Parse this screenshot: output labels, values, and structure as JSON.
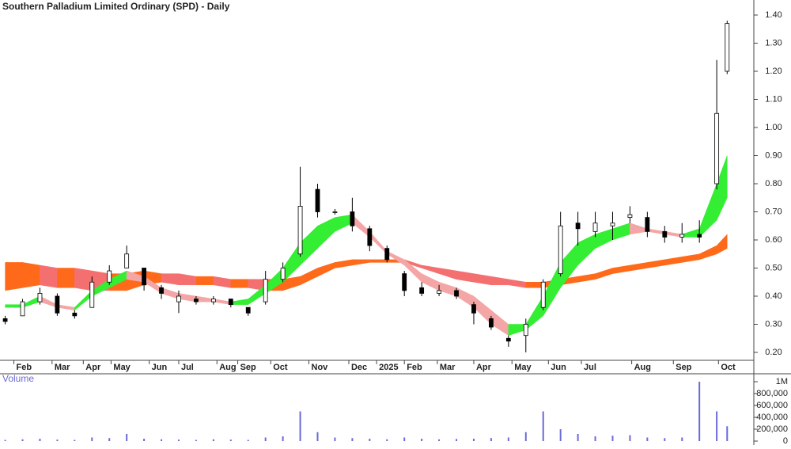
{
  "chart_data": {
    "type": "candlestick",
    "title": "Southern Palladium Limited Ordinary (SPD) - Daily",
    "xlim": [
      -3,
      430
    ],
    "xticks": [
      {
        "value": 5,
        "label": "Feb"
      },
      {
        "value": 27,
        "label": "Mar"
      },
      {
        "value": 45,
        "label": "Apr"
      },
      {
        "value": 61,
        "label": "May"
      },
      {
        "value": 83,
        "label": "Jun"
      },
      {
        "value": 100,
        "label": "Jul"
      },
      {
        "value": 122,
        "label": "Aug"
      },
      {
        "value": 134,
        "label": "Sep"
      },
      {
        "value": 153,
        "label": "Oct"
      },
      {
        "value": 175,
        "label": "Nov"
      },
      {
        "value": 198,
        "label": "Dec"
      },
      {
        "value": 214,
        "label": "2025"
      },
      {
        "value": 230,
        "label": "Feb"
      },
      {
        "value": 249,
        "label": "Mar"
      },
      {
        "value": 270,
        "label": "Apr"
      },
      {
        "value": 292,
        "label": "May"
      },
      {
        "value": 313,
        "label": "Jun"
      },
      {
        "value": 332,
        "label": "Jul"
      },
      {
        "value": 361,
        "label": "Aug"
      },
      {
        "value": 385,
        "label": "Sep"
      },
      {
        "value": 411,
        "label": "Oct"
      }
    ],
    "ylim": [
      0.15,
      1.46
    ],
    "yticks": [
      {
        "value": 0.2,
        "label": "0.20"
      },
      {
        "value": 0.3,
        "label": "0.30"
      },
      {
        "value": 0.4,
        "label": "0.40"
      },
      {
        "value": 0.5,
        "label": "0.50"
      },
      {
        "value": 0.6,
        "label": "0.60"
      },
      {
        "value": 0.7,
        "label": "0.70"
      },
      {
        "value": 0.8,
        "label": "0.80"
      },
      {
        "value": 0.9,
        "label": "0.90"
      },
      {
        "value": 1.0,
        "label": "1.00"
      },
      {
        "value": 1.1,
        "label": "1.10"
      },
      {
        "value": 1.2,
        "label": "1.20"
      },
      {
        "value": 1.3,
        "label": "1.30"
      },
      {
        "value": 1.4,
        "label": "1.40"
      }
    ],
    "x": [
      0,
      10,
      20,
      30,
      40,
      50,
      60,
      70,
      80,
      90,
      100,
      110,
      120,
      130,
      140,
      150,
      160,
      170,
      180,
      190,
      200,
      210,
      220,
      230,
      240,
      250,
      260,
      270,
      280,
      290,
      300,
      310,
      320,
      330,
      340,
      350,
      360,
      370,
      380,
      390,
      400,
      410,
      416
    ],
    "open": [
      0.32,
      0.33,
      0.38,
      0.4,
      0.34,
      0.36,
      0.45,
      0.5,
      0.5,
      0.43,
      0.38,
      0.39,
      0.38,
      0.39,
      0.36,
      0.38,
      0.46,
      0.55,
      0.78,
      0.7,
      0.7,
      0.64,
      0.57,
      0.48,
      0.43,
      0.41,
      0.42,
      0.37,
      0.32,
      0.25,
      0.26,
      0.36,
      0.48,
      0.66,
      0.63,
      0.65,
      0.68,
      0.68,
      0.63,
      0.61,
      0.62,
      0.8,
      1.2
    ],
    "high": [
      0.33,
      0.39,
      0.43,
      0.41,
      0.35,
      0.47,
      0.51,
      0.58,
      0.5,
      0.44,
      0.42,
      0.4,
      0.4,
      0.39,
      0.36,
      0.49,
      0.52,
      0.86,
      0.8,
      0.71,
      0.75,
      0.65,
      0.58,
      0.49,
      0.45,
      0.44,
      0.43,
      0.38,
      0.33,
      0.26,
      0.32,
      0.46,
      0.7,
      0.7,
      0.7,
      0.7,
      0.72,
      0.7,
      0.65,
      0.66,
      0.67,
      1.24,
      1.38
    ],
    "low": [
      0.3,
      0.33,
      0.37,
      0.33,
      0.32,
      0.36,
      0.44,
      0.5,
      0.42,
      0.39,
      0.34,
      0.37,
      0.37,
      0.36,
      0.33,
      0.37,
      0.45,
      0.54,
      0.68,
      0.69,
      0.63,
      0.56,
      0.52,
      0.4,
      0.4,
      0.4,
      0.39,
      0.3,
      0.28,
      0.22,
      0.2,
      0.35,
      0.47,
      0.58,
      0.61,
      0.6,
      0.66,
      0.61,
      0.59,
      0.59,
      0.59,
      0.78,
      1.19
    ],
    "close": [
      0.31,
      0.38,
      0.41,
      0.34,
      0.33,
      0.45,
      0.49,
      0.55,
      0.44,
      0.41,
      0.4,
      0.38,
      0.39,
      0.37,
      0.34,
      0.46,
      0.5,
      0.72,
      0.7,
      0.7,
      0.65,
      0.58,
      0.53,
      0.42,
      0.41,
      0.42,
      0.4,
      0.34,
      0.29,
      0.24,
      0.3,
      0.45,
      0.65,
      0.64,
      0.66,
      0.66,
      0.69,
      0.63,
      0.61,
      0.62,
      0.61,
      1.05,
      1.37
    ],
    "ribbons": [
      {
        "upper": [
          0.52,
          0.52,
          0.51,
          0.5,
          0.5,
          0.49,
          0.48,
          0.48,
          0.49,
          0.48,
          0.48,
          0.47,
          0.47,
          0.46,
          0.46,
          0.46,
          0.46,
          0.47,
          0.5,
          0.52,
          0.53,
          0.53,
          0.53,
          0.53,
          0.51,
          0.5,
          0.49,
          0.48,
          0.47,
          0.46,
          0.45,
          0.45,
          0.46,
          0.47,
          0.48,
          0.5,
          0.51,
          0.52,
          0.53,
          0.54,
          0.55,
          0.58,
          0.62
        ],
        "lower": [
          0.42,
          0.43,
          0.44,
          0.43,
          0.43,
          0.42,
          0.42,
          0.42,
          0.44,
          0.45,
          0.44,
          0.44,
          0.44,
          0.43,
          0.43,
          0.42,
          0.42,
          0.44,
          0.47,
          0.5,
          0.51,
          0.52,
          0.52,
          0.52,
          0.5,
          0.48,
          0.46,
          0.45,
          0.44,
          0.44,
          0.43,
          0.43,
          0.44,
          0.45,
          0.46,
          0.48,
          0.49,
          0.5,
          0.51,
          0.52,
          0.53,
          0.55,
          0.57
        ],
        "up_color": "#ff6a1a",
        "down_color": "#f47070"
      },
      {
        "upper": [
          0.37,
          0.37,
          0.4,
          0.37,
          0.36,
          0.42,
          0.46,
          0.49,
          0.47,
          0.43,
          0.41,
          0.4,
          0.39,
          0.38,
          0.39,
          0.44,
          0.5,
          0.59,
          0.65,
          0.68,
          0.69,
          0.63,
          0.56,
          0.53,
          0.48,
          0.45,
          0.43,
          0.4,
          0.35,
          0.3,
          0.3,
          0.4,
          0.52,
          0.59,
          0.62,
          0.64,
          0.66,
          0.64,
          0.63,
          0.62,
          0.64,
          0.8,
          0.9
        ],
        "lower": [
          0.36,
          0.36,
          0.38,
          0.36,
          0.35,
          0.4,
          0.43,
          0.46,
          0.45,
          0.41,
          0.39,
          0.38,
          0.38,
          0.37,
          0.37,
          0.41,
          0.45,
          0.51,
          0.57,
          0.63,
          0.66,
          0.61,
          0.55,
          0.51,
          0.45,
          0.42,
          0.4,
          0.36,
          0.3,
          0.26,
          0.28,
          0.33,
          0.43,
          0.51,
          0.57,
          0.6,
          0.62,
          0.63,
          0.62,
          0.61,
          0.61,
          0.67,
          0.75
        ],
        "up_color": "#33ee33",
        "down_color": "#f4a6a6"
      }
    ],
    "volume_label": "Volume",
    "volume": [
      20000,
      30000,
      40000,
      25000,
      20000,
      60000,
      50000,
      120000,
      40000,
      30000,
      25000,
      20000,
      30000,
      25000,
      20000,
      60000,
      80000,
      500000,
      150000,
      60000,
      50000,
      40000,
      30000,
      60000,
      40000,
      30000,
      35000,
      40000,
      50000,
      60000,
      150000,
      500000,
      200000,
      120000,
      80000,
      90000,
      100000,
      60000,
      50000,
      60000,
      1000000,
      500000,
      250000
    ],
    "volume_color": "#6a6ad8",
    "volume_lim": [
      0,
      1050000
    ],
    "volume_ticks": [
      0,
      {
        "value": 200000,
        "label": "200,000"
      },
      {
        "value": 400000,
        "label": "400,000"
      },
      {
        "value": 600000,
        "label": "600,000"
      },
      {
        "value": 800000,
        "label": "800,000"
      },
      {
        "value": 1000000,
        "label": "1M"
      }
    ]
  }
}
